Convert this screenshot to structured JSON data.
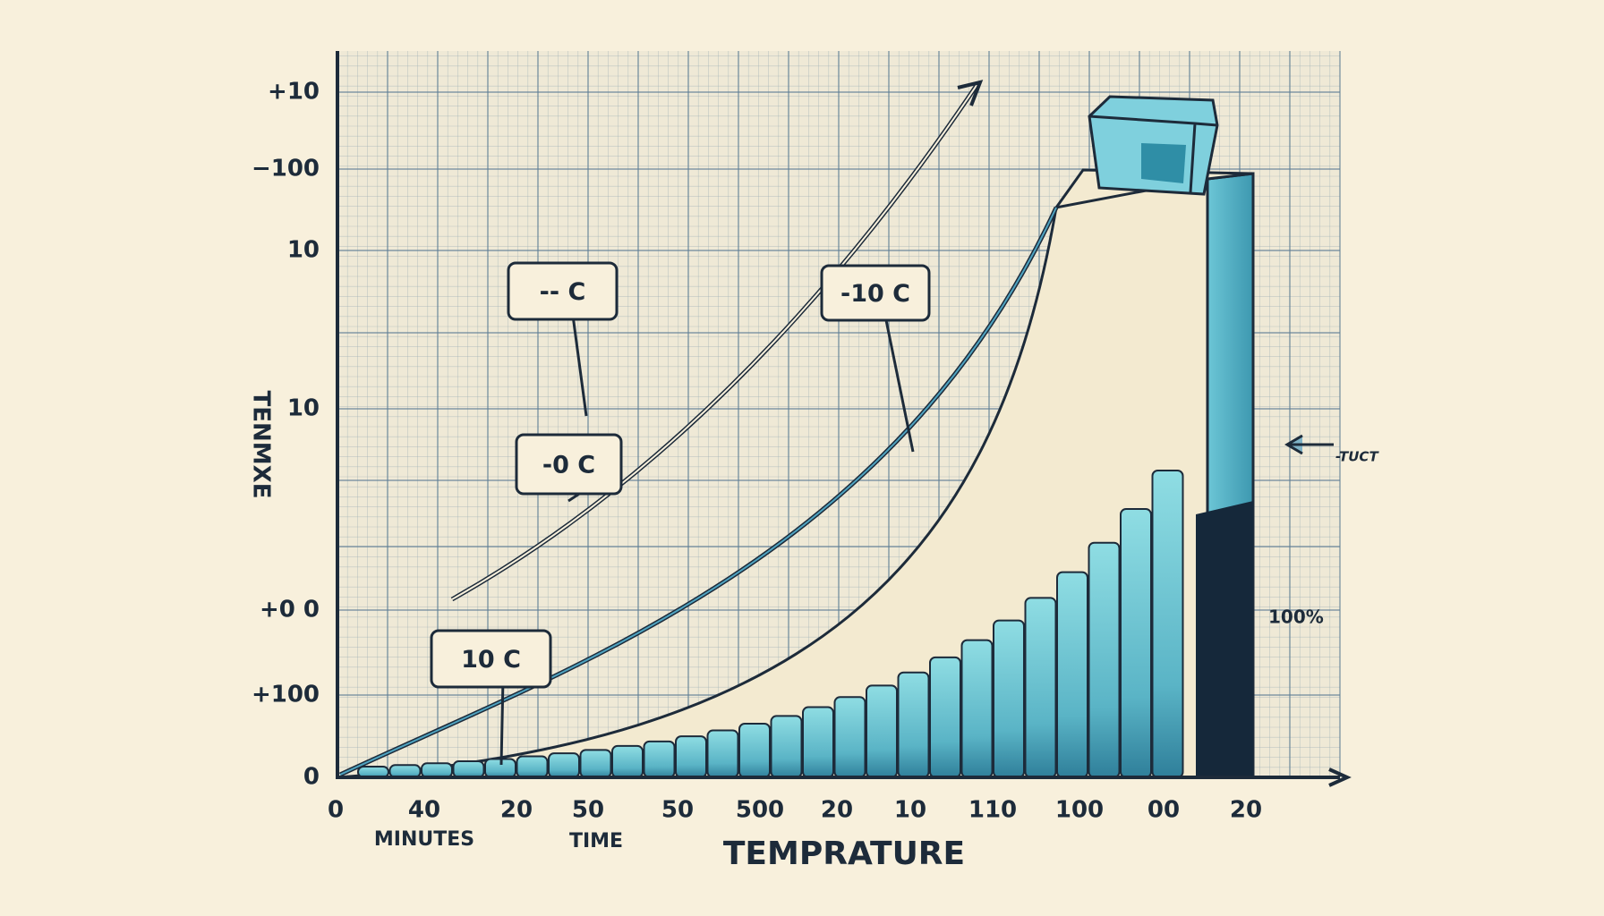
{
  "y_axis": {
    "title": "TENMXE",
    "labels": [
      "+10",
      "−100",
      "10",
      "10",
      "+0 0",
      "+100",
      "0"
    ]
  },
  "x_axis": {
    "title": "TEMPRATURE",
    "labels": [
      "0",
      "40",
      "20",
      "50",
      "50",
      "500",
      "20",
      "10",
      "110",
      "100",
      "00",
      "20"
    ],
    "sublabels": [
      "MINUTES",
      "TIME"
    ]
  },
  "callouts": [
    "-- C",
    "-10 C",
    "-0 C",
    "10 C"
  ],
  "side_notes": [
    "-TUCT",
    "100%"
  ]
}
